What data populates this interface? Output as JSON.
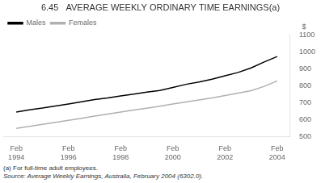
{
  "chart_data": {
    "type": "line",
    "title": "6.45   AVERAGE WEEKLY ORDINARY TIME EARNINGS(a)",
    "ylabel": "$",
    "annotations": [
      "(a) For full-time adult employees.",
      "Source: Average Weekly Earnings, Australia, February 2004 (6302.0)."
    ],
    "x": [
      1994.0,
      1994.5,
      1995.0,
      1995.5,
      1996.0,
      1996.5,
      1997.0,
      1997.5,
      1998.0,
      1998.5,
      1999.0,
      1999.5,
      2000.0,
      2000.5,
      2001.0,
      2001.5,
      2002.0,
      2002.5,
      2003.0,
      2003.5,
      2004.0
    ],
    "series": [
      {
        "name": "Males",
        "color": "#000000",
        "values": [
          645,
          658,
          668,
          680,
          692,
          705,
          718,
          728,
          740,
          750,
          762,
          772,
          790,
          808,
          822,
          838,
          858,
          878,
          905,
          940,
          972
        ]
      },
      {
        "name": "Females",
        "color": "#b0b0b0",
        "values": [
          548,
          560,
          572,
          584,
          596,
          608,
          621,
          633,
          644,
          656,
          667,
          679,
          692,
          704,
          716,
          728,
          742,
          756,
          771,
          796,
          828
        ]
      }
    ],
    "xlim": [
      1993.5,
      2004.5
    ],
    "xticks": [
      {
        "value": 1994,
        "label": "Feb\n1994"
      },
      {
        "value": 1996,
        "label": "Feb\n1996"
      },
      {
        "value": 1998,
        "label": "Feb\n1998"
      },
      {
        "value": 2000,
        "label": "Feb\n2000"
      },
      {
        "value": 2002,
        "label": "Feb\n2002"
      },
      {
        "value": 2004,
        "label": "Feb\n2004"
      }
    ],
    "ylim": [
      500,
      1100
    ],
    "yticks": [
      500,
      600,
      700,
      800,
      900,
      1000,
      1100
    ],
    "grid": false,
    "legend": "upper left"
  }
}
